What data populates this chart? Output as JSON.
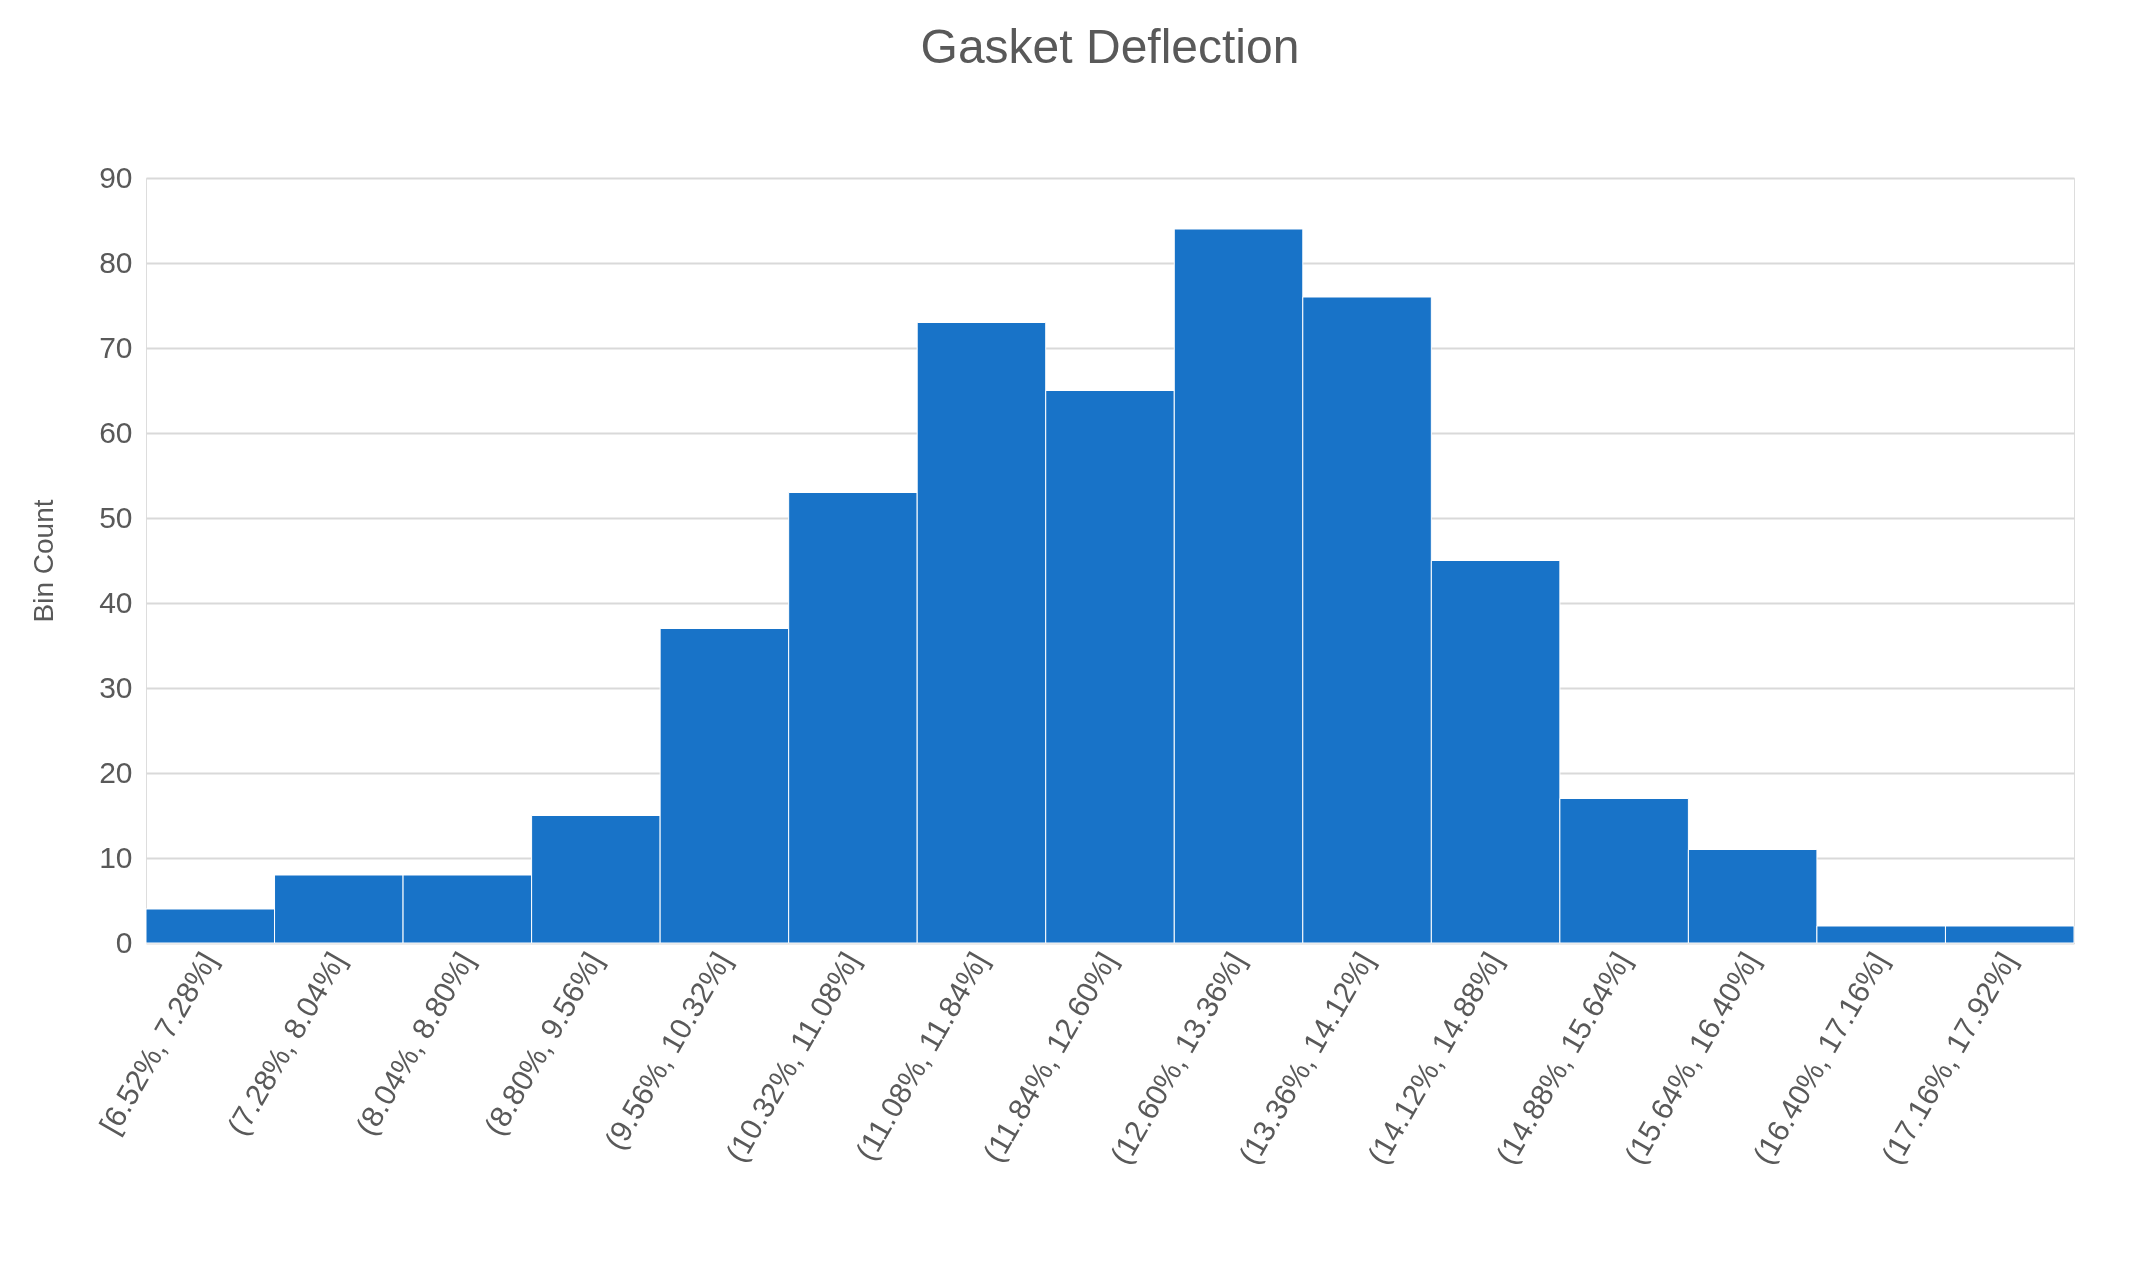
{
  "chart_data": {
    "type": "bar",
    "title": "Gasket Deflection",
    "ylabel": "Bin Count",
    "categories": [
      "[6.52%, 7.28%]",
      "(7.28%, 8.04%]",
      "(8.04%, 8.80%]",
      "(8.80%, 9.56%]",
      "(9.56%, 10.32%]",
      "(10.32%, 11.08%]",
      "(11.08%, 11.84%]",
      "(11.84%, 12.60%]",
      "(12.60%, 13.36%]",
      "(13.36%, 14.12%]",
      "(14.12%, 14.88%]",
      "(14.88%, 15.64%]",
      "(15.64%, 16.40%]",
      "(16.40%, 17.16%]",
      "(17.16%, 17.92%]"
    ],
    "values": [
      4,
      8,
      8,
      15,
      37,
      53,
      73,
      65,
      84,
      76,
      45,
      17,
      11,
      2,
      2
    ],
    "color": "#1873c8",
    "ylim": [
      0,
      90
    ],
    "yticks": [
      0,
      10,
      20,
      30,
      40,
      50,
      60,
      70,
      80,
      90
    ],
    "grid": "y"
  }
}
